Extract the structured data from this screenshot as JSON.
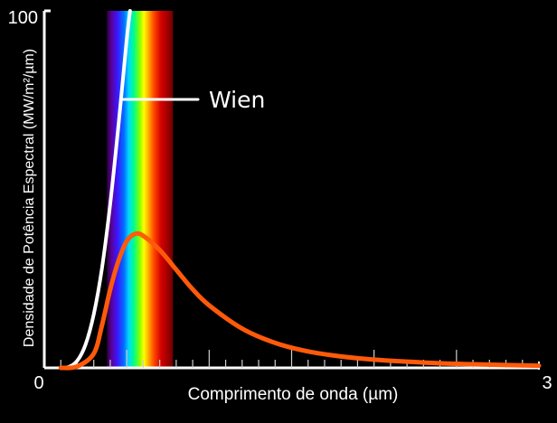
{
  "chart_data": {
    "type": "line",
    "xlabel": "Comprimento de onda (µm)",
    "ylabel": "Densidade de Potência Espectral (MW/m²/µm)",
    "xlim": [
      0,
      3
    ],
    "ylim": [
      0,
      100
    ],
    "x_tick_labels": [
      "0",
      "3"
    ],
    "y_tick_labels": [
      "100"
    ],
    "visible_spectrum_um": [
      0.38,
      0.78
    ],
    "series": [
      {
        "label": "Wien",
        "color": "#ffffff",
        "points": [
          [
            0.1,
            0.0
          ],
          [
            0.15,
            0.3
          ],
          [
            0.2,
            2.0
          ],
          [
            0.25,
            6.5
          ],
          [
            0.3,
            15.0
          ],
          [
            0.35,
            28.0
          ],
          [
            0.4,
            46.0
          ],
          [
            0.45,
            68.0
          ],
          [
            0.5,
            92.0
          ],
          [
            0.52,
            100.0
          ]
        ]
      },
      {
        "label": "",
        "color": "#ff5a0a",
        "points": [
          [
            0.1,
            0.0
          ],
          [
            0.2,
            0.4
          ],
          [
            0.3,
            4.0
          ],
          [
            0.35,
            12.0
          ],
          [
            0.4,
            22.0
          ],
          [
            0.45,
            30.0
          ],
          [
            0.5,
            35.5
          ],
          [
            0.55,
            37.5
          ],
          [
            0.6,
            37.0
          ],
          [
            0.7,
            33.0
          ],
          [
            0.8,
            27.5
          ],
          [
            0.9,
            22.0
          ],
          [
            1.0,
            17.5
          ],
          [
            1.2,
            11.0
          ],
          [
            1.4,
            7.0
          ],
          [
            1.6,
            4.6
          ],
          [
            1.8,
            3.2
          ],
          [
            2.0,
            2.3
          ],
          [
            2.3,
            1.5
          ],
          [
            2.6,
            1.0
          ],
          [
            3.0,
            0.6
          ]
        ]
      }
    ],
    "annotations": [
      {
        "text": "Wien",
        "x": 1.0,
        "y": 76
      }
    ]
  }
}
